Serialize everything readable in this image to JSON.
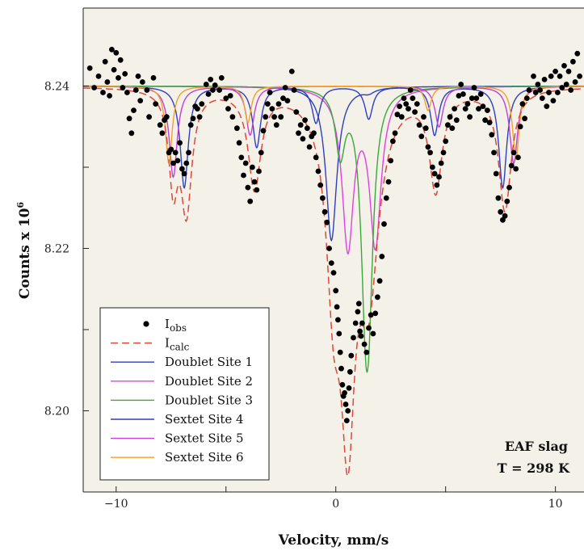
{
  "chart_data": {
    "type": "scatter",
    "xlabel": "Velocity, mm/s",
    "ylabel": "Counts x 10",
    "ylabel_sup": "6",
    "xlim": [
      -11.5,
      11.3
    ],
    "ylim": [
      8.19,
      8.2496
    ],
    "xticks": [
      -10,
      -5,
      0,
      5,
      10
    ],
    "xtick_labels": [
      "−10",
      "",
      "0",
      "",
      "10"
    ],
    "yticks": [
      8.2,
      8.21,
      8.22,
      8.23,
      8.24
    ],
    "ytick_labels": [
      "8.20",
      "",
      "8.22",
      "",
      "8.24"
    ],
    "background": "#f3f1e8",
    "baseline": 8.24,
    "annotation": [
      "EAF slag",
      "T = 298 K"
    ],
    "legend": {
      "placement": "bottom-left",
      "entries": [
        {
          "key": "obs",
          "label": "I",
          "sub": "obs",
          "style": "dot",
          "color": "#000000"
        },
        {
          "key": "calc",
          "label": "I",
          "sub": "calc",
          "style": "dashed",
          "color": "#e0463a"
        },
        {
          "key": "d1",
          "label": "Doublet Site 1",
          "style": "line",
          "color": "#2f3fbf"
        },
        {
          "key": "d2",
          "label": "Doublet Site 2",
          "style": "line",
          "color": "#e040e0"
        },
        {
          "key": "d3",
          "label": "Doublet Site 3",
          "style": "line",
          "color": "#3aa83a"
        },
        {
          "key": "s4",
          "label": "Sextet Site 4",
          "style": "line",
          "color": "#2f3fbf"
        },
        {
          "key": "s5",
          "label": "Sextet Site 5",
          "style": "line",
          "color": "#c040d8"
        },
        {
          "key": "s6",
          "label": "Sextet Site 6",
          "style": "line",
          "color": "#f0a030"
        }
      ]
    },
    "components": [
      {
        "key": "d1",
        "color": "#2f3fbf",
        "width": 0.3,
        "peaks": [
          [
            -0.2,
            0.019
          ],
          [
            1.5,
            0.0005
          ]
        ]
      },
      {
        "key": "d2",
        "color": "#e040e0",
        "width": 0.32,
        "peaks": [
          [
            0.55,
            0.0195
          ],
          [
            1.8,
            0.019
          ]
        ]
      },
      {
        "key": "d3",
        "color": "#3aa83a",
        "width": 0.26,
        "peaks": [
          [
            0.2,
            0.0078
          ],
          [
            1.35,
            0.019
          ],
          [
            1.5,
            0.0188
          ]
        ]
      },
      {
        "key": "s4",
        "color": "#2f3fbf",
        "width": 0.22,
        "peaks": [
          [
            -6.9,
            0.0125
          ],
          [
            -3.6,
            0.0075
          ],
          [
            -0.9,
            0.0045
          ],
          [
            1.5,
            0.004
          ],
          [
            4.5,
            0.006
          ],
          [
            7.6,
            0.0125
          ]
        ]
      },
      {
        "key": "s5",
        "color": "#c040d8",
        "width": 0.22,
        "peaks": [
          [
            -7.4,
            0.0112
          ],
          [
            -3.9,
            0.006
          ],
          [
            4.7,
            0.005
          ],
          [
            8.1,
            0.0095
          ]
        ]
      },
      {
        "key": "s6",
        "color": "#f0a030",
        "width": 0.18,
        "peaks": [
          [
            -7.6,
            0.0095
          ],
          [
            -4.0,
            0.0045
          ],
          [
            4.2,
            0.003
          ],
          [
            8.2,
            0.009
          ]
        ]
      }
    ],
    "calc": {
      "color": "#e0463a",
      "peaks": [
        [
          -7.4,
          0.0112,
          0.25
        ],
        [
          -6.8,
          0.0145,
          0.3
        ],
        [
          -3.7,
          0.012,
          0.35
        ],
        [
          -0.1,
          0.0205,
          0.4
        ],
        [
          0.55,
          0.0365,
          0.4
        ],
        [
          1.5,
          0.0225,
          0.55
        ],
        [
          4.55,
          0.012,
          0.35
        ],
        [
          7.7,
          0.015,
          0.35
        ]
      ]
    },
    "observed": [
      [
        -11.2,
        8.2422
      ],
      [
        -11.0,
        8.2398
      ],
      [
        -10.8,
        8.2412
      ],
      [
        -10.6,
        8.2392
      ],
      [
        -10.5,
        8.243
      ],
      [
        -10.4,
        8.2405
      ],
      [
        -10.3,
        8.2388
      ],
      [
        -10.2,
        8.2445
      ],
      [
        -10.1,
        8.242
      ],
      [
        -10.0,
        8.2441
      ],
      [
        -9.9,
        8.241
      ],
      [
        -9.8,
        8.2432
      ],
      [
        -9.7,
        8.2398
      ],
      [
        -9.6,
        8.2415
      ],
      [
        -9.5,
        8.2392
      ],
      [
        -9.4,
        8.236
      ],
      [
        -9.3,
        8.2342
      ],
      [
        -9.2,
        8.237
      ],
      [
        -9.1,
        8.2395
      ],
      [
        -9.0,
        8.2412
      ],
      [
        -8.9,
        8.2382
      ],
      [
        -8.8,
        8.2405
      ],
      [
        -8.6,
        8.2395
      ],
      [
        -8.5,
        8.2362
      ],
      [
        -8.3,
        8.241
      ],
      [
        -8.2,
        8.2378
      ],
      [
        -8.0,
        8.2352
      ],
      [
        -7.9,
        8.2342
      ],
      [
        -7.8,
        8.2358
      ],
      [
        -7.7,
        8.2362
      ],
      [
        -7.6,
        8.2318
      ],
      [
        -7.5,
        8.2322
      ],
      [
        -7.4,
        8.2305
      ],
      [
        -7.3,
        8.2318
      ],
      [
        -7.2,
        8.2308
      ],
      [
        -7.1,
        8.233
      ],
      [
        -7.0,
        8.2298
      ],
      [
        -6.9,
        8.2292
      ],
      [
        -6.8,
        8.2305
      ],
      [
        -6.7,
        8.2318
      ],
      [
        -6.6,
        8.2352
      ],
      [
        -6.5,
        8.236
      ],
      [
        -6.4,
        8.2375
      ],
      [
        -6.3,
        8.2372
      ],
      [
        -6.2,
        8.2362
      ],
      [
        -6.1,
        8.2378
      ],
      [
        -5.9,
        8.2402
      ],
      [
        -5.8,
        8.239
      ],
      [
        -5.7,
        8.2408
      ],
      [
        -5.6,
        8.2395
      ],
      [
        -5.5,
        8.2401
      ],
      [
        -5.3,
        8.2395
      ],
      [
        -5.2,
        8.241
      ],
      [
        -5.0,
        8.2385
      ],
      [
        -4.9,
        8.2372
      ],
      [
        -4.8,
        8.2388
      ],
      [
        -4.7,
        8.2362
      ],
      [
        -4.5,
        8.2348
      ],
      [
        -4.4,
        8.233
      ],
      [
        -4.3,
        8.2312
      ],
      [
        -4.2,
        8.229
      ],
      [
        -4.1,
        8.2305
      ],
      [
        -4.0,
        8.2275
      ],
      [
        -3.9,
        8.2258
      ],
      [
        -3.8,
        8.23
      ],
      [
        -3.7,
        8.2282
      ],
      [
        -3.6,
        8.2272
      ],
      [
        -3.5,
        8.2295
      ],
      [
        -3.4,
        8.2318
      ],
      [
        -3.3,
        8.2345
      ],
      [
        -3.2,
        8.2362
      ],
      [
        -3.1,
        8.2378
      ],
      [
        -3.0,
        8.2392
      ],
      [
        -2.9,
        8.2372
      ],
      [
        -2.8,
        8.2362
      ],
      [
        -2.7,
        8.2352
      ],
      [
        -2.6,
        8.2378
      ],
      [
        -2.5,
        8.2362
      ],
      [
        -2.4,
        8.2385
      ],
      [
        -2.3,
        8.2398
      ],
      [
        -2.2,
        8.2382
      ],
      [
        -2.0,
        8.2418
      ],
      [
        -1.9,
        8.2395
      ],
      [
        -1.8,
        8.2368
      ],
      [
        -1.7,
        8.2342
      ],
      [
        -1.6,
        8.2352
      ],
      [
        -1.5,
        8.2335
      ],
      [
        -1.4,
        8.2358
      ],
      [
        -1.3,
        8.2348
      ],
      [
        -1.2,
        8.2325
      ],
      [
        -1.1,
        8.2338
      ],
      [
        -1.0,
        8.2342
      ],
      [
        -0.9,
        8.2312
      ],
      [
        -0.8,
        8.2295
      ],
      [
        -0.7,
        8.2278
      ],
      [
        -0.6,
        8.2262
      ],
      [
        -0.5,
        8.2245
      ],
      [
        -0.4,
        8.2232
      ],
      [
        -0.3,
        8.22
      ],
      [
        -0.2,
        8.2182
      ],
      [
        -0.1,
        8.217
      ],
      [
        0.0,
        8.2148
      ],
      [
        0.05,
        8.2128
      ],
      [
        0.1,
        8.2112
      ],
      [
        0.15,
        8.2095
      ],
      [
        0.2,
        8.2072
      ],
      [
        0.25,
        8.2052
      ],
      [
        0.3,
        8.2032
      ],
      [
        0.35,
        8.2018
      ],
      [
        0.4,
        8.2022
      ],
      [
        0.45,
        8.2008
      ],
      [
        0.5,
        8.1988
      ],
      [
        0.55,
        8.2
      ],
      [
        0.6,
        8.2028
      ],
      [
        0.65,
        8.2048
      ],
      [
        0.7,
        8.2068
      ],
      [
        0.8,
        8.209
      ],
      [
        0.9,
        8.2108
      ],
      [
        1.0,
        8.2122
      ],
      [
        1.05,
        8.2132
      ],
      [
        1.1,
        8.2098
      ],
      [
        1.15,
        8.2092
      ],
      [
        1.2,
        8.2108
      ],
      [
        1.3,
        8.2082
      ],
      [
        1.4,
        8.2072
      ],
      [
        1.5,
        8.2102
      ],
      [
        1.6,
        8.2118
      ],
      [
        1.7,
        8.2095
      ],
      [
        1.8,
        8.212
      ],
      [
        1.9,
        8.214
      ],
      [
        2.0,
        8.216
      ],
      [
        2.1,
        8.219
      ],
      [
        2.2,
        8.223
      ],
      [
        2.3,
        8.2262
      ],
      [
        2.4,
        8.2282
      ],
      [
        2.5,
        8.2308
      ],
      [
        2.6,
        8.2332
      ],
      [
        2.7,
        8.2342
      ],
      [
        2.8,
        8.2365
      ],
      [
        2.9,
        8.2375
      ],
      [
        3.0,
        8.2362
      ],
      [
        3.1,
        8.2385
      ],
      [
        3.2,
        8.2378
      ],
      [
        3.3,
        8.2372
      ],
      [
        3.4,
        8.2395
      ],
      [
        3.5,
        8.2385
      ],
      [
        3.6,
        8.2368
      ],
      [
        3.7,
        8.2378
      ],
      [
        3.8,
        8.2352
      ],
      [
        3.9,
        8.2338
      ],
      [
        4.0,
        8.2362
      ],
      [
        4.1,
        8.2348
      ],
      [
        4.2,
        8.2325
      ],
      [
        4.3,
        8.2318
      ],
      [
        4.4,
        8.23
      ],
      [
        4.5,
        8.2292
      ],
      [
        4.6,
        8.2278
      ],
      [
        4.7,
        8.2288
      ],
      [
        4.8,
        8.2305
      ],
      [
        4.9,
        8.2318
      ],
      [
        5.0,
        8.2332
      ],
      [
        5.1,
        8.2352
      ],
      [
        5.2,
        8.2362
      ],
      [
        5.3,
        8.2348
      ],
      [
        5.4,
        8.2372
      ],
      [
        5.5,
        8.2358
      ],
      [
        5.6,
        8.2388
      ],
      [
        5.7,
        8.2402
      ],
      [
        5.8,
        8.239
      ],
      [
        5.9,
        8.2372
      ],
      [
        6.0,
        8.2378
      ],
      [
        6.1,
        8.2362
      ],
      [
        6.2,
        8.2385
      ],
      [
        6.3,
        8.2398
      ],
      [
        6.4,
        8.2385
      ],
      [
        6.5,
        8.2372
      ],
      [
        6.6,
        8.239
      ],
      [
        6.7,
        8.2375
      ],
      [
        6.8,
        8.2358
      ],
      [
        6.9,
        8.237
      ],
      [
        7.0,
        8.2355
      ],
      [
        7.1,
        8.234
      ],
      [
        7.2,
        8.2318
      ],
      [
        7.3,
        8.2292
      ],
      [
        7.4,
        8.2262
      ],
      [
        7.5,
        8.2245
      ],
      [
        7.6,
        8.2235
      ],
      [
        7.7,
        8.224
      ],
      [
        7.8,
        8.2258
      ],
      [
        7.9,
        8.2275
      ],
      [
        8.0,
        8.2302
      ],
      [
        8.1,
        8.2318
      ],
      [
        8.2,
        8.2298
      ],
      [
        8.3,
        8.2312
      ],
      [
        8.4,
        8.235
      ],
      [
        8.5,
        8.2378
      ],
      [
        8.6,
        8.236
      ],
      [
        8.7,
        8.2385
      ],
      [
        8.8,
        8.2395
      ],
      [
        9.0,
        8.2412
      ],
      [
        9.1,
        8.2392
      ],
      [
        9.2,
        8.2402
      ],
      [
        9.3,
        8.2395
      ],
      [
        9.4,
        8.2385
      ],
      [
        9.5,
        8.2408
      ],
      [
        9.6,
        8.2375
      ],
      [
        9.7,
        8.2392
      ],
      [
        9.8,
        8.2412
      ],
      [
        9.9,
        8.2382
      ],
      [
        10.0,
        8.2418
      ],
      [
        10.1,
        8.2392
      ],
      [
        10.2,
        8.2412
      ],
      [
        10.3,
        8.2398
      ],
      [
        10.4,
        8.2425
      ],
      [
        10.5,
        8.2402
      ],
      [
        10.6,
        8.2418
      ],
      [
        10.7,
        8.2395
      ],
      [
        10.8,
        8.243
      ],
      [
        10.9,
        8.2405
      ],
      [
        11.0,
        8.244
      ],
      [
        11.1,
        8.2412
      ]
    ]
  }
}
